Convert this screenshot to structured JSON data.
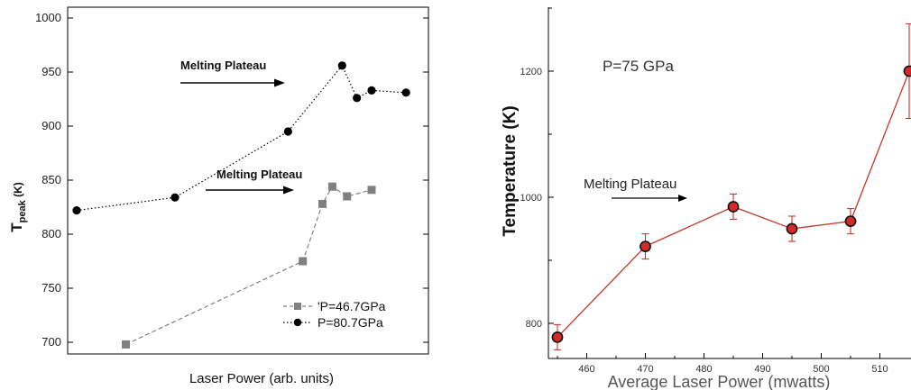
{
  "chart_data": [
    {
      "type": "line",
      "xlabel": "Laser Power (arb. units)",
      "ylabel_main": "T",
      "ylabel_sub": "peak",
      "ylabel_unit": " (K)",
      "ylim": [
        680,
        1000
      ],
      "yticks": [
        700,
        750,
        800,
        850,
        900,
        950,
        1000
      ],
      "x_ticks_shown": false,
      "legend_position": "bottom-right",
      "series": [
        {
          "name": "'P=46.7GPa",
          "marker": "square",
          "color": "#808080",
          "linestyle": "dashed",
          "x": [
            1.0,
            4.6,
            5.0,
            5.2,
            5.5,
            6.0
          ],
          "values": [
            698,
            775,
            828,
            844,
            835,
            841
          ]
        },
        {
          "name": "P=80.7GPa",
          "marker": "circle",
          "color": "#000000",
          "linestyle": "dotted",
          "x": [
            0.0,
            2.0,
            4.3,
            5.4,
            5.7,
            6.0,
            6.7
          ],
          "values": [
            822,
            834,
            895,
            956,
            926,
            933,
            931
          ]
        }
      ],
      "annotations": [
        {
          "text": "Melting Plateau",
          "arrow": "right",
          "near_value": 945
        },
        {
          "text": "Melting Plateau",
          "arrow": "right",
          "near_value": 840
        }
      ]
    },
    {
      "type": "line",
      "title": "P=75 GPa",
      "xlabel": "Average Laser Power (mwatts)",
      "ylabel": "Temperature (K)",
      "xlim": [
        453,
        515
      ],
      "ylim": [
        700,
        1310
      ],
      "xticks": [
        460,
        470,
        480,
        490,
        500,
        510
      ],
      "yticks": [
        800,
        1000,
        1200
      ],
      "series": [
        {
          "marker": "circle",
          "color": "#c0392b",
          "x": [
            455,
            470,
            485,
            495,
            505,
            515
          ],
          "values": [
            778,
            922,
            985,
            950,
            962,
            1200
          ],
          "error": [
            20,
            20,
            20,
            20,
            20,
            75
          ]
        }
      ],
      "annotations": [
        {
          "text": "Melting Plateau",
          "arrow": "right"
        }
      ]
    }
  ]
}
